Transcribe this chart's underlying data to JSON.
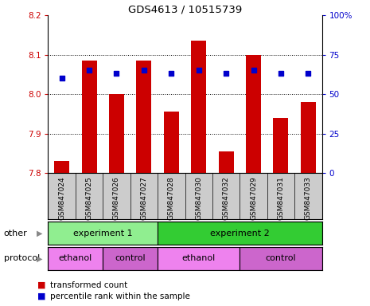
{
  "title": "GDS4613 / 10515739",
  "samples": [
    "GSM847024",
    "GSM847025",
    "GSM847026",
    "GSM847027",
    "GSM847028",
    "GSM847030",
    "GSM847032",
    "GSM847029",
    "GSM847031",
    "GSM847033"
  ],
  "transformed_counts": [
    7.83,
    8.085,
    8.0,
    8.085,
    7.955,
    8.135,
    7.855,
    8.1,
    7.94,
    7.98
  ],
  "percentile_ranks": [
    60,
    65,
    63,
    65,
    63,
    65,
    63,
    65,
    63,
    63
  ],
  "ylim_left": [
    7.8,
    8.2
  ],
  "ylim_right": [
    0,
    100
  ],
  "yticks_left": [
    7.8,
    7.9,
    8.0,
    8.1,
    8.2
  ],
  "yticks_right": [
    0,
    25,
    50,
    75,
    100
  ],
  "bar_color": "#cc0000",
  "dot_color": "#0000cc",
  "bar_bottom": 7.8,
  "groups": [
    {
      "label": "experiment 1",
      "start": 0,
      "end": 4,
      "color": "#90ee90"
    },
    {
      "label": "experiment 2",
      "start": 4,
      "end": 10,
      "color": "#33cc33"
    }
  ],
  "protocols": [
    {
      "label": "ethanol",
      "start": 0,
      "end": 2,
      "color": "#ee82ee"
    },
    {
      "label": "control",
      "start": 2,
      "end": 4,
      "color": "#cc66cc"
    },
    {
      "label": "ethanol",
      "start": 4,
      "end": 7,
      "color": "#ee82ee"
    },
    {
      "label": "control",
      "start": 7,
      "end": 10,
      "color": "#cc66cc"
    }
  ],
  "legend_items": [
    {
      "label": "transformed count",
      "color": "#cc0000"
    },
    {
      "label": "percentile rank within the sample",
      "color": "#0000cc"
    }
  ],
  "left_tick_color": "#cc0000",
  "right_tick_color": "#0000cc",
  "sample_bg_color": "#cccccc",
  "grid_yticks": [
    7.9,
    8.0,
    8.1
  ]
}
